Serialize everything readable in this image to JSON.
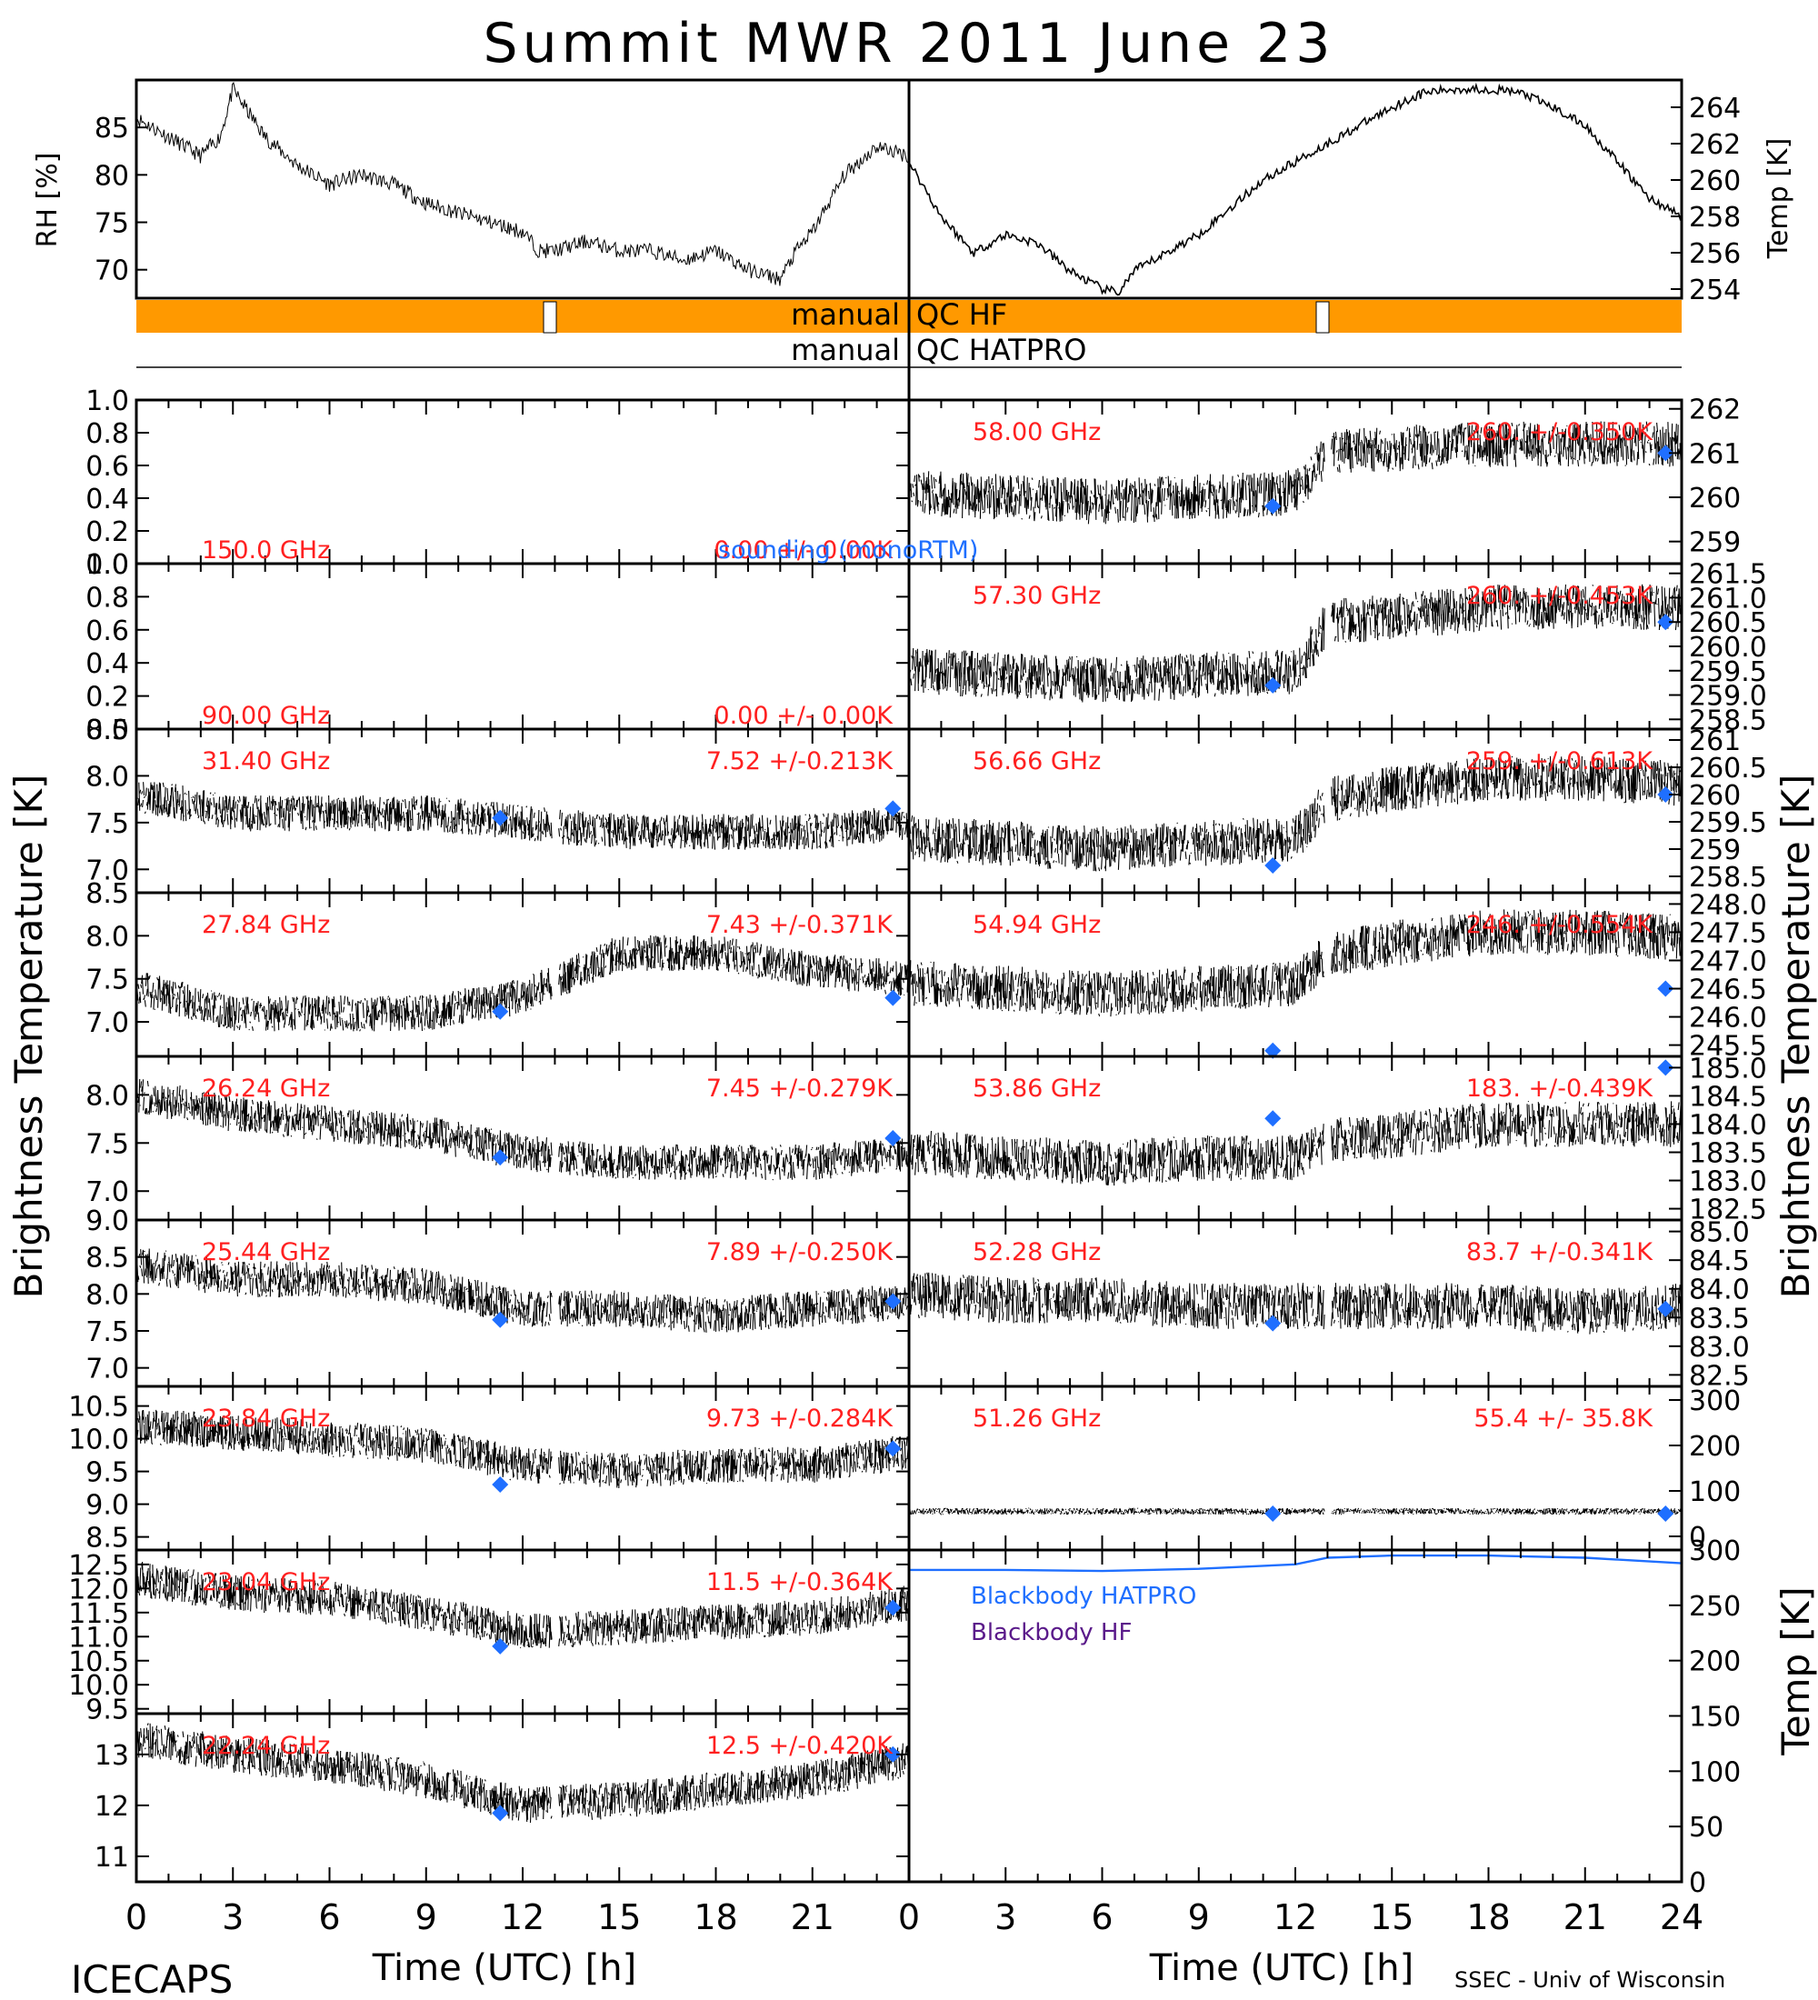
{
  "title": "Summit MWR 2011 June 23",
  "footer": {
    "left": "ICECAPS",
    "right": "SSEC - Univ of Wisconsin"
  },
  "xlabel": "Time (UTC) [h]",
  "xticks": [
    "0",
    "3",
    "6",
    "9",
    "12",
    "15",
    "18",
    "21",
    "24"
  ],
  "xticks_left": [
    "0",
    "3",
    "6",
    "9",
    "12",
    "15",
    "18",
    "21"
  ],
  "left_ylabel": "Brightness Temperature [K]",
  "right_ylabel_top": "Brightness Temperature [K]",
  "right_ylabel_bottom": "Temp [K]",
  "top_panel": {
    "rh_label": "RH [%]",
    "temp_label": "Temp [K]",
    "rh_ticks": [
      "85",
      "80",
      "75",
      "70"
    ],
    "temp_ticks": [
      "264",
      "262",
      "260",
      "258",
      "256",
      "254"
    ],
    "qc_hf_left": "manual",
    "qc_hf_right": "QC HF",
    "qc_hatpro_left": "manual",
    "qc_hatpro_right": "QC HATPRO",
    "colors": {
      "qc_bar": "#ff9900",
      "blue": "#1f6fff",
      "red": "#ff2020",
      "purple": "#5a1a8a"
    }
  },
  "left_panels": [
    {
      "freq": "150.0 GHz",
      "stat": "0.00 +/- 0.00K",
      "overlay": "sounding (monoRTM)",
      "ticks": [
        "1.0",
        "0.8",
        "0.6",
        "0.4",
        "0.2",
        "0.0"
      ]
    },
    {
      "freq": "90.00 GHz",
      "stat": "0.00 +/- 0.00K",
      "ticks": [
        "1.0",
        "0.8",
        "0.6",
        "0.4",
        "0.2",
        "0.0"
      ]
    },
    {
      "freq": "31.40 GHz",
      "stat": "7.52 +/-0.213K",
      "ticks": [
        "8.5",
        "8.0",
        "7.5",
        "7.0"
      ]
    },
    {
      "freq": "27.84 GHz",
      "stat": "7.43 +/-0.371K",
      "ticks": [
        "8.5",
        "8.0",
        "7.5",
        "7.0"
      ]
    },
    {
      "freq": "26.24 GHz",
      "stat": "7.45 +/-0.279K",
      "ticks": [
        "8.0",
        "7.5",
        "7.0"
      ]
    },
    {
      "freq": "25.44 GHz",
      "stat": "7.89 +/-0.250K",
      "ticks": [
        "9.0",
        "8.5",
        "8.0",
        "7.5",
        "7.0"
      ]
    },
    {
      "freq": "23.84 GHz",
      "stat": "9.73 +/-0.284K",
      "ticks": [
        "10.5",
        "10.0",
        "9.5",
        "9.0",
        "8.5"
      ]
    },
    {
      "freq": "23.04 GHz",
      "stat": "11.5 +/-0.364K",
      "ticks": [
        "12.5",
        "12.0",
        "11.5",
        "11.0",
        "10.5",
        "10.0",
        "9.5"
      ]
    },
    {
      "freq": "22.24 GHz",
      "stat": "12.5 +/-0.420K",
      "ticks": [
        "13",
        "12",
        "11"
      ]
    }
  ],
  "right_panels": [
    {
      "freq": "58.00 GHz",
      "stat": "260. +/-0.350K",
      "ticks": [
        "262",
        "261",
        "260",
        "259"
      ]
    },
    {
      "freq": "57.30 GHz",
      "stat": "260. +/-0.453K",
      "ticks": [
        "261.5",
        "261.0",
        "260.5",
        "260.0",
        "259.5",
        "259.0",
        "258.5"
      ]
    },
    {
      "freq": "56.66 GHz",
      "stat": "259. +/-0.613K",
      "ticks": [
        "261",
        "260.5",
        "260",
        "259.5",
        "259",
        "258.5"
      ]
    },
    {
      "freq": "54.94 GHz",
      "stat": "246. +/-0.554K",
      "ticks": [
        "248.0",
        "247.5",
        "247.0",
        "246.5",
        "246.0",
        "245.5"
      ]
    },
    {
      "freq": "53.86 GHz",
      "stat": "183. +/-0.439K",
      "ticks": [
        "185.0",
        "184.5",
        "184.0",
        "183.5",
        "183.0",
        "182.5"
      ]
    },
    {
      "freq": "52.28 GHz",
      "stat": "83.7 +/-0.341K",
      "ticks": [
        "85.0",
        "84.5",
        "84.0",
        "83.5",
        "83.0",
        "82.5"
      ]
    },
    {
      "freq": "51.26 GHz",
      "stat": "55.4 +/- 35.8K",
      "ticks": [
        "300",
        "200",
        "100",
        "0"
      ]
    }
  ],
  "blackbody_panel": {
    "legend_hatpro": "Blackbody HATPRO",
    "legend_hf": "Blackbody HF",
    "ticks": [
      "300",
      "250",
      "200",
      "150",
      "100",
      "50",
      "0"
    ]
  },
  "chart_data": [
    {
      "type": "line",
      "title": "Summit MWR 2011 June 23",
      "ylabel": "RH [%]",
      "ylim": [
        67,
        90
      ],
      "series": [
        {
          "x": [
            0,
            1,
            2,
            2.6,
            3,
            4,
            5,
            6,
            7,
            8,
            9,
            10,
            11,
            12,
            12.5,
            13,
            14,
            15,
            16,
            17,
            18,
            19,
            20,
            20.5,
            21,
            22,
            23,
            24
          ],
          "values": [
            86,
            84,
            82,
            84,
            89,
            84,
            81,
            79,
            80,
            79,
            77,
            76,
            75,
            74,
            72,
            72,
            73,
            72,
            72,
            71,
            72,
            70,
            69,
            72,
            74,
            80,
            83,
            82
          ]
        }
      ]
    },
    {
      "type": "line",
      "ylabel": "Temp [K]",
      "ylim": [
        253.5,
        265.5
      ],
      "series": [
        {
          "x": [
            0,
            1,
            2,
            3,
            4,
            5,
            6,
            6.5,
            7,
            8,
            9,
            10,
            11,
            12,
            13,
            14,
            15,
            16,
            17,
            18,
            19,
            20,
            21,
            22,
            23,
            24
          ],
          "values": [
            261,
            258,
            256,
            257,
            256.5,
            255,
            254,
            253.8,
            255,
            256,
            257,
            258.5,
            260,
            261,
            262,
            263,
            264,
            264.8,
            265,
            265,
            264.8,
            264,
            263,
            261,
            259,
            258
          ]
        }
      ]
    },
    {
      "type": "scatter",
      "title": "150.0 GHz",
      "xlim": [
        0,
        24
      ],
      "ylim": [
        0,
        1
      ],
      "series": []
    },
    {
      "type": "scatter",
      "title": "90.00 GHz",
      "xlim": [
        0,
        24
      ],
      "ylim": [
        0,
        1
      ],
      "series": []
    },
    {
      "type": "scatter",
      "title": "31.40 GHz",
      "xlim": [
        0,
        24
      ],
      "ylim": [
        6.75,
        8.5
      ],
      "series": [
        {
          "x": [
            0,
            3,
            6,
            9,
            12,
            15,
            18,
            21,
            24
          ],
          "values": [
            7.8,
            7.6,
            7.6,
            7.6,
            7.5,
            7.4,
            7.4,
            7.4,
            7.5
          ]
        },
        {
          "name": "sounding (monoRTM)",
          "x": [
            11.3,
            23.5
          ],
          "values": [
            7.55,
            7.65
          ]
        }
      ]
    },
    {
      "type": "scatter",
      "title": "27.84 GHz",
      "xlim": [
        0,
        24
      ],
      "ylim": [
        6.6,
        8.5
      ],
      "series": [
        {
          "x": [
            0,
            3,
            6,
            9,
            12,
            15,
            18,
            21,
            24
          ],
          "values": [
            7.4,
            7.1,
            7.1,
            7.1,
            7.3,
            7.8,
            7.8,
            7.6,
            7.5
          ]
        },
        {
          "name": "sounding (monoRTM)",
          "x": [
            11.3,
            23.5
          ],
          "values": [
            7.12,
            7.28
          ]
        }
      ]
    },
    {
      "type": "scatter",
      "title": "26.24 GHz",
      "xlim": [
        0,
        24
      ],
      "ylim": [
        6.7,
        8.4
      ],
      "series": [
        {
          "x": [
            0,
            3,
            6,
            9,
            12,
            15,
            18,
            21,
            24
          ],
          "values": [
            8.0,
            7.8,
            7.7,
            7.6,
            7.4,
            7.3,
            7.3,
            7.3,
            7.4
          ]
        },
        {
          "name": "sounding (monoRTM)",
          "x": [
            11.3,
            23.5
          ],
          "values": [
            7.35,
            7.55
          ]
        }
      ]
    },
    {
      "type": "scatter",
      "title": "25.44 GHz",
      "xlim": [
        0,
        24
      ],
      "ylim": [
        6.75,
        9.0
      ],
      "series": [
        {
          "x": [
            0,
            3,
            6,
            9,
            12,
            15,
            18,
            21,
            24
          ],
          "values": [
            8.4,
            8.2,
            8.2,
            8.1,
            7.8,
            7.8,
            7.7,
            7.8,
            7.9
          ]
        },
        {
          "name": "sounding (monoRTM)",
          "x": [
            11.3,
            23.5
          ],
          "values": [
            7.65,
            7.9
          ]
        }
      ]
    },
    {
      "type": "scatter",
      "title": "23.84 GHz",
      "xlim": [
        0,
        24
      ],
      "ylim": [
        8.3,
        10.8
      ],
      "series": [
        {
          "x": [
            0,
            3,
            6,
            9,
            12,
            15,
            18,
            21,
            24
          ],
          "values": [
            10.2,
            10.1,
            10.0,
            9.9,
            9.6,
            9.5,
            9.6,
            9.6,
            9.8
          ]
        },
        {
          "name": "sounding (monoRTM)",
          "x": [
            11.3,
            23.5
          ],
          "values": [
            9.3,
            9.85
          ]
        }
      ]
    },
    {
      "type": "scatter",
      "title": "23.04 GHz",
      "xlim": [
        0,
        24
      ],
      "ylim": [
        9.4,
        12.8
      ],
      "series": [
        {
          "x": [
            0,
            3,
            6,
            9,
            12,
            15,
            18,
            21,
            24
          ],
          "values": [
            12.2,
            11.9,
            11.8,
            11.5,
            11.1,
            11.2,
            11.3,
            11.4,
            11.7
          ]
        },
        {
          "name": "sounding (monoRTM)",
          "x": [
            11.3,
            23.5
          ],
          "values": [
            10.8,
            11.6
          ]
        }
      ]
    },
    {
      "type": "scatter",
      "title": "22.24 GHz",
      "xlim": [
        0,
        24
      ],
      "ylim": [
        10.5,
        13.8
      ],
      "series": [
        {
          "x": [
            0,
            3,
            6,
            9,
            12,
            15,
            18,
            21,
            24
          ],
          "values": [
            13.3,
            13.0,
            12.8,
            12.5,
            12.0,
            12.1,
            12.3,
            12.5,
            12.9
          ]
        },
        {
          "name": "sounding (monoRTM)",
          "x": [
            11.3,
            23.5
          ],
          "values": [
            11.85,
            13.0
          ]
        }
      ]
    },
    {
      "type": "scatter",
      "title": "58.00 GHz",
      "xlim": [
        0,
        24
      ],
      "ylim": [
        258.5,
        262.2
      ],
      "series": [
        {
          "x": [
            0,
            3,
            6,
            9,
            12,
            13,
            15,
            18,
            21,
            24
          ],
          "values": [
            260.1,
            260.0,
            259.9,
            260.0,
            260.1,
            261.0,
            261.1,
            261.2,
            261.2,
            261.2
          ]
        },
        {
          "name": "sounding (monoRTM)",
          "x": [
            11.3,
            23.5
          ],
          "values": [
            259.8,
            261.0
          ]
        }
      ]
    },
    {
      "type": "scatter",
      "title": "57.30 GHz",
      "xlim": [
        0,
        24
      ],
      "ylim": [
        258.3,
        261.7
      ],
      "series": [
        {
          "x": [
            0,
            3,
            6,
            9,
            12,
            13,
            15,
            18,
            21,
            24
          ],
          "values": [
            259.5,
            259.4,
            259.3,
            259.4,
            259.5,
            260.5,
            260.6,
            260.8,
            260.8,
            260.8
          ]
        },
        {
          "name": "sounding (monoRTM)",
          "x": [
            11.3,
            23.5
          ],
          "values": [
            259.2,
            260.5
          ]
        }
      ]
    },
    {
      "type": "scatter",
      "title": "56.66 GHz",
      "xlim": [
        0,
        24
      ],
      "ylim": [
        258.2,
        261.2
      ],
      "series": [
        {
          "x": [
            0,
            3,
            6,
            9,
            12,
            13,
            15,
            18,
            21,
            24
          ],
          "values": [
            259.2,
            259.1,
            259.0,
            259.1,
            259.2,
            259.9,
            260.1,
            260.3,
            260.3,
            260.2
          ]
        },
        {
          "name": "sounding (monoRTM)",
          "x": [
            11.3,
            23.5
          ],
          "values": [
            258.7,
            260.0
          ]
        }
      ]
    },
    {
      "type": "scatter",
      "title": "54.94 GHz",
      "xlim": [
        0,
        24
      ],
      "ylim": [
        245.3,
        248.2
      ],
      "series": [
        {
          "x": [
            0,
            3,
            6,
            9,
            12,
            13,
            15,
            18,
            21,
            24
          ],
          "values": [
            246.6,
            246.5,
            246.4,
            246.5,
            246.6,
            247.1,
            247.3,
            247.5,
            247.5,
            247.4
          ]
        },
        {
          "name": "sounding (monoRTM)",
          "x": [
            11.3,
            23.5
          ],
          "values": [
            245.4,
            246.5
          ]
        }
      ]
    },
    {
      "type": "scatter",
      "title": "53.86 GHz",
      "xlim": [
        0,
        24
      ],
      "ylim": [
        182.3,
        185.2
      ],
      "series": [
        {
          "x": [
            0,
            3,
            6,
            9,
            12,
            13,
            15,
            18,
            21,
            24
          ],
          "values": [
            183.5,
            183.4,
            183.3,
            183.4,
            183.4,
            183.7,
            183.8,
            184.0,
            184.0,
            184.0
          ]
        },
        {
          "name": "sounding (monoRTM)",
          "x": [
            11.3,
            23.5
          ],
          "values": [
            184.1,
            185.0
          ]
        }
      ]
    },
    {
      "type": "scatter",
      "title": "52.28 GHz",
      "xlim": [
        0,
        24
      ],
      "ylim": [
        82.3,
        85.2
      ],
      "series": [
        {
          "x": [
            0,
            3,
            6,
            9,
            12,
            13,
            15,
            18,
            21,
            24
          ],
          "values": [
            83.9,
            83.8,
            83.8,
            83.7,
            83.7,
            83.7,
            83.7,
            83.7,
            83.6,
            83.7
          ]
        },
        {
          "name": "sounding (monoRTM)",
          "x": [
            11.3,
            23.5
          ],
          "values": [
            83.4,
            83.65
          ]
        }
      ]
    },
    {
      "type": "scatter",
      "title": "51.26 GHz",
      "xlim": [
        0,
        24
      ],
      "ylim": [
        -30,
        330
      ],
      "series": [
        {
          "x": [
            0,
            3,
            6,
            9,
            12,
            15,
            18,
            21,
            24
          ],
          "values": [
            55,
            55,
            55,
            55,
            55,
            55,
            55,
            55,
            55
          ]
        },
        {
          "name": "sounding (monoRTM)",
          "x": [
            11.3,
            23.5
          ],
          "values": [
            50,
            50
          ]
        }
      ]
    },
    {
      "type": "line",
      "xlim": [
        0,
        24
      ],
      "ylim": [
        0,
        300
      ],
      "ylabel": "Temp [K]",
      "series": [
        {
          "name": "Blackbody HATPRO",
          "x": [
            0,
            3,
            6,
            9,
            12,
            13,
            15,
            18,
            21,
            24
          ],
          "values": [
            282,
            282,
            281,
            283,
            287,
            293,
            295,
            295,
            293,
            288
          ]
        },
        {
          "name": "Blackbody HF",
          "x": [],
          "values": []
        }
      ]
    }
  ]
}
